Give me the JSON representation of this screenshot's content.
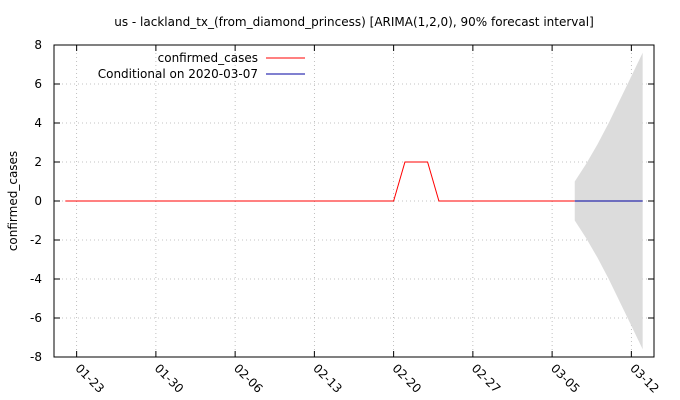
{
  "chart_data": {
    "type": "line",
    "title": "us - lackland_tx_(from_diamond_princess) [ARIMA(1,2,0), 90% forecast interval]",
    "xlabel": "",
    "ylabel": "confirmed_cases",
    "x_start": "2020-01-22",
    "xlim": [
      "2020-01-21",
      "2020-03-14"
    ],
    "ylim": [
      -8,
      8
    ],
    "y_ticks": [
      -8,
      -6,
      -4,
      -2,
      0,
      2,
      4,
      6,
      8
    ],
    "x_ticks": [
      "01-23",
      "01-30",
      "02-06",
      "02-13",
      "02-20",
      "02-27",
      "03-05",
      "03-12"
    ],
    "grid": true,
    "legend_position": "top-left",
    "series": [
      {
        "name": "confirmed_cases",
        "color": "#ff0000",
        "x": [
          "2020-01-22",
          "2020-01-23",
          "2020-01-24",
          "2020-01-25",
          "2020-01-26",
          "2020-01-27",
          "2020-01-28",
          "2020-01-29",
          "2020-01-30",
          "2020-01-31",
          "2020-02-01",
          "2020-02-02",
          "2020-02-03",
          "2020-02-04",
          "2020-02-05",
          "2020-02-06",
          "2020-02-07",
          "2020-02-08",
          "2020-02-09",
          "2020-02-10",
          "2020-02-11",
          "2020-02-12",
          "2020-02-13",
          "2020-02-14",
          "2020-02-15",
          "2020-02-16",
          "2020-02-17",
          "2020-02-18",
          "2020-02-19",
          "2020-02-20",
          "2020-02-21",
          "2020-02-22",
          "2020-02-23",
          "2020-02-24",
          "2020-02-25",
          "2020-02-26",
          "2020-02-27",
          "2020-02-28",
          "2020-02-29",
          "2020-03-01",
          "2020-03-02",
          "2020-03-03",
          "2020-03-04",
          "2020-03-05",
          "2020-03-06",
          "2020-03-07"
        ],
        "y": [
          0,
          0,
          0,
          0,
          0,
          0,
          0,
          0,
          0,
          0,
          0,
          0,
          0,
          0,
          0,
          0,
          0,
          0,
          0,
          0,
          0,
          0,
          0,
          0,
          0,
          0,
          0,
          0,
          0,
          0,
          2,
          2,
          2,
          0,
          0,
          0,
          0,
          0,
          0,
          0,
          0,
          0,
          0,
          0,
          0,
          0
        ]
      },
      {
        "name": "Conditional on 2020-03-07",
        "color": "#0000a0",
        "x": [
          "2020-03-07",
          "2020-03-08",
          "2020-03-09",
          "2020-03-10",
          "2020-03-11",
          "2020-03-12",
          "2020-03-13"
        ],
        "y": [
          0,
          0,
          0,
          0,
          0,
          0,
          0
        ]
      }
    ],
    "forecast_interval": {
      "color": "#dcdcdc",
      "x": [
        "2020-03-07",
        "2020-03-08",
        "2020-03-09",
        "2020-03-10",
        "2020-03-11",
        "2020-03-12",
        "2020-03-13"
      ],
      "lower": [
        -1.0,
        -1.9,
        -2.9,
        -4.0,
        -5.2,
        -6.4,
        -7.6
      ],
      "upper": [
        1.0,
        1.9,
        2.9,
        4.0,
        5.2,
        6.4,
        7.6
      ]
    }
  }
}
